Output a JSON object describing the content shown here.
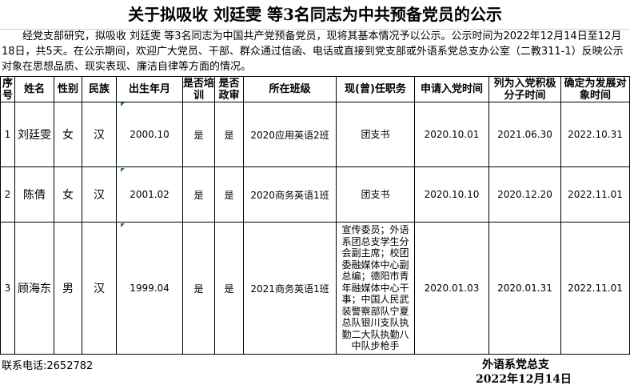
{
  "title": "关于拟吸收 刘廷雯 等3名同志为中共预备党员的公示",
  "intro": "经党支部研究，拟吸收 刘廷雯 等3名同志为中国共产党预备党员，现将其基本情况予以公示。公示时间为2022年12月14日至12月18日，共5天。在公示期间，欢迎广大党员、干部、群众通过信函、电话或直接到党支部或外语系党总支办公室（二教311-1）反映公示对象在思想品质、现实表现、廉洁自律等方面的情况。",
  "headers": [
    "序号",
    "姓名",
    "性别",
    "民族",
    "出生年月",
    "是否培训",
    "是否政审",
    "所在班级",
    "现(曾)任职务",
    "申请入党时间",
    "列为入党积极分子时间",
    "确定为发展对象时间"
  ],
  "rows": [
    [
      "1",
      "刘廷雯",
      "女",
      "汉",
      "2000.10",
      "是",
      "是",
      "2020应用英语2班",
      "团支书",
      "2020.10.01",
      "2021.06.30",
      "2022.10.31"
    ],
    [
      "2",
      "陈倩",
      "女",
      "汉",
      "2001.02",
      "是",
      "是",
      "2020商务英语1班",
      "团支书",
      "2020.10.10",
      "2020.12.20",
      "2022.11.01"
    ],
    [
      "3",
      "顾海东",
      "男",
      "汉",
      "1999.04",
      "是",
      "是",
      "2021商务英语1班",
      "宣传委员；外语系团总支学生分会副主席；校团委融媒体中心副总编；德阳市青年融媒体中心干事；中国人民武装警察部队宁夏总队银川支队执勤二大队执勤八中队步枪手",
      "2020.01.03",
      "2020.01.31",
      "2022.11.01"
    ]
  ],
  "contact": "联系电话:2652782",
  "org": "外语系党总支",
  "date": "2022年12月14日",
  "colors": {
    "cell_marker": "#1a8a1a"
  }
}
